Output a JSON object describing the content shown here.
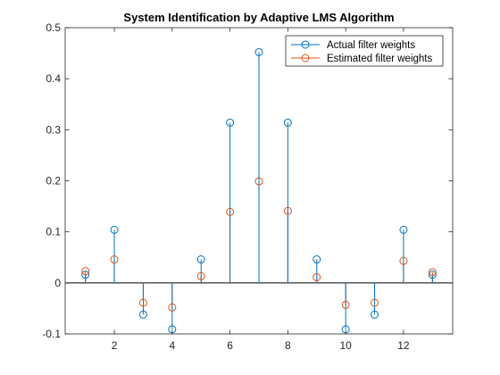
{
  "chart_data": {
    "type": "stem",
    "title": "System Identification by Adaptive LMS Algorithm",
    "xlim": [
      0.3,
      13.7
    ],
    "ylim": [
      -0.1,
      0.5
    ],
    "x": [
      1,
      2,
      3,
      4,
      5,
      6,
      7,
      8,
      9,
      10,
      11,
      12,
      13
    ],
    "xticks": [
      "2",
      "4",
      "6",
      "8",
      "10",
      "12"
    ],
    "yticks": [
      "-0.1",
      "0",
      "0.1",
      "0.2",
      "0.3",
      "0.4",
      "0.5"
    ],
    "baseline": 0,
    "legend_position": "top-right",
    "series": [
      {
        "name": "Actual filter weights",
        "color": "#0072BD",
        "values": [
          0.016,
          0.104,
          -0.062,
          -0.091,
          0.046,
          0.314,
          0.452,
          0.314,
          0.046,
          -0.091,
          -0.062,
          0.104,
          0.016
        ]
      },
      {
        "name": "Estimated filter weights",
        "color": "#D95319",
        "values": [
          0.023,
          0.046,
          -0.039,
          -0.048,
          0.013,
          0.139,
          0.199,
          0.141,
          0.011,
          -0.043,
          -0.039,
          0.043,
          0.021
        ]
      }
    ]
  }
}
